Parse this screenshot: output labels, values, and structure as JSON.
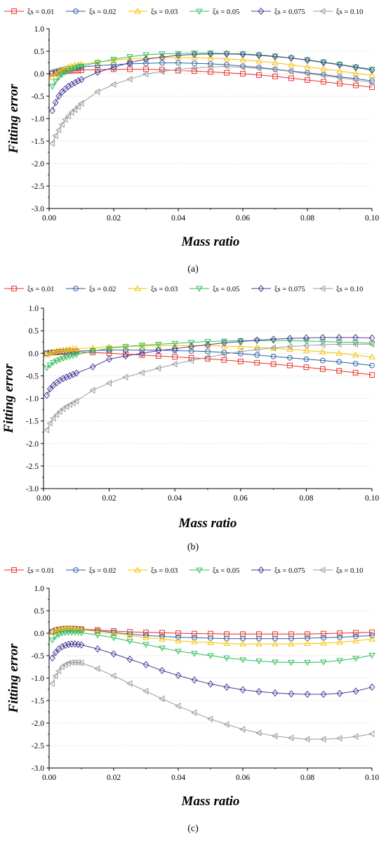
{
  "chart_data": [
    {
      "type": "line",
      "caption": "(a)",
      "xlabel": "Mass ratio",
      "ylabel": "Fitting error",
      "xlim": [
        0.0,
        0.1
      ],
      "ylim": [
        -3.0,
        1.0
      ],
      "xticks": [
        "0.00",
        "0.02",
        "0.04",
        "0.06",
        "0.08",
        "0.10"
      ],
      "yticks": [
        "1.0",
        "0.5",
        "0.0",
        "-0.5",
        "-1.0",
        "-1.5",
        "-2.0",
        "-2.5",
        "-3.0"
      ],
      "grid": "horizontal dotted",
      "legend_position": "top",
      "x": [
        0.001,
        0.002,
        0.003,
        0.004,
        0.005,
        0.006,
        0.007,
        0.008,
        0.009,
        0.01,
        0.015,
        0.02,
        0.025,
        0.03,
        0.035,
        0.04,
        0.045,
        0.05,
        0.055,
        0.06,
        0.065,
        0.07,
        0.075,
        0.08,
        0.085,
        0.09,
        0.095,
        0.1
      ],
      "series": [
        {
          "name": "ξs = 0.01",
          "values": [
            0.0,
            0.02,
            0.04,
            0.05,
            0.06,
            0.06,
            0.07,
            0.07,
            0.07,
            0.08,
            0.09,
            0.1,
            0.1,
            0.1,
            0.09,
            0.07,
            0.06,
            0.04,
            0.02,
            0.0,
            -0.03,
            -0.06,
            -0.1,
            -0.14,
            -0.18,
            -0.22,
            -0.26,
            -0.3
          ]
        },
        {
          "name": "ξs = 0.02",
          "values": [
            0.03,
            0.05,
            0.07,
            0.09,
            0.1,
            0.11,
            0.12,
            0.13,
            0.14,
            0.15,
            0.18,
            0.2,
            0.22,
            0.23,
            0.24,
            0.24,
            0.23,
            0.22,
            0.2,
            0.17,
            0.14,
            0.1,
            0.06,
            0.02,
            -0.02,
            -0.07,
            -0.11,
            -0.16
          ]
        },
        {
          "name": "ξs = 0.03",
          "values": [
            -0.08,
            0.0,
            0.05,
            0.09,
            0.12,
            0.15,
            0.17,
            0.19,
            0.2,
            0.21,
            0.26,
            0.3,
            0.33,
            0.35,
            0.36,
            0.36,
            0.36,
            0.35,
            0.33,
            0.31,
            0.28,
            0.24,
            0.2,
            0.15,
            0.11,
            0.06,
            0.01,
            -0.04
          ]
        },
        {
          "name": "ξs = 0.05",
          "values": [
            -0.28,
            -0.17,
            -0.08,
            -0.02,
            0.03,
            0.07,
            0.1,
            0.13,
            0.15,
            0.17,
            0.25,
            0.32,
            0.38,
            0.42,
            0.44,
            0.45,
            0.46,
            0.46,
            0.45,
            0.44,
            0.42,
            0.39,
            0.35,
            0.31,
            0.26,
            0.21,
            0.15,
            0.1
          ]
        },
        {
          "name": "ξs = 0.075",
          "values": [
            -0.82,
            -0.64,
            -0.5,
            -0.41,
            -0.34,
            -0.28,
            -0.24,
            -0.2,
            -0.16,
            -0.13,
            0.03,
            0.14,
            0.25,
            0.32,
            0.37,
            0.41,
            0.43,
            0.44,
            0.44,
            0.43,
            0.41,
            0.38,
            0.35,
            0.3,
            0.25,
            0.2,
            0.14,
            0.08
          ]
        },
        {
          "name": "ξs = 0.10",
          "values": [
            -1.55,
            -1.38,
            -1.25,
            -1.13,
            -1.02,
            -0.94,
            -0.86,
            -0.8,
            -0.73,
            -0.66,
            -0.4,
            -0.24,
            -0.12,
            -0.01,
            0.05,
            0.1,
            0.13,
            0.15,
            0.16,
            0.14,
            0.12,
            0.09,
            0.05,
            0.0,
            -0.04,
            -0.09,
            -0.14,
            -0.2
          ]
        }
      ]
    },
    {
      "type": "line",
      "caption": "(b)",
      "xlabel": "Mass ratio",
      "ylabel": "Fitting error",
      "xlim": [
        0.0,
        0.1
      ],
      "ylim": [
        -3.0,
        1.0
      ],
      "xticks": [
        "0.00",
        "0.02",
        "0.04",
        "0.06",
        "0.08",
        "0.10"
      ],
      "yticks": [
        "1.0",
        "0.5",
        "0.0",
        "-0.5",
        "-1.0",
        "-1.5",
        "-2.0",
        "-2.5",
        "-3.0"
      ],
      "grid": "horizontal dotted",
      "legend_position": "top",
      "x": [
        0.001,
        0.002,
        0.003,
        0.004,
        0.005,
        0.006,
        0.007,
        0.008,
        0.009,
        0.01,
        0.015,
        0.02,
        0.025,
        0.03,
        0.035,
        0.04,
        0.045,
        0.05,
        0.055,
        0.06,
        0.065,
        0.07,
        0.075,
        0.08,
        0.085,
        0.09,
        0.095,
        0.1
      ],
      "series": [
        {
          "name": "ξs = 0.01",
          "values": [
            0.0,
            0.01,
            0.02,
            0.02,
            0.03,
            0.03,
            0.03,
            0.03,
            0.03,
            0.03,
            0.02,
            0.0,
            -0.02,
            -0.04,
            -0.06,
            -0.08,
            -0.1,
            -0.12,
            -0.15,
            -0.18,
            -0.21,
            -0.24,
            -0.27,
            -0.31,
            -0.35,
            -0.39,
            -0.43,
            -0.48
          ]
        },
        {
          "name": "ξs = 0.02",
          "values": [
            0.0,
            0.01,
            0.02,
            0.03,
            0.04,
            0.04,
            0.05,
            0.05,
            0.05,
            0.05,
            0.06,
            0.07,
            0.07,
            0.07,
            0.07,
            0.06,
            0.05,
            0.04,
            0.02,
            -0.01,
            -0.04,
            -0.07,
            -0.1,
            -0.13,
            -0.16,
            -0.19,
            -0.23,
            -0.27
          ]
        },
        {
          "name": "ξs = 0.03",
          "values": [
            -0.03,
            0.0,
            0.03,
            0.05,
            0.06,
            0.07,
            0.08,
            0.09,
            0.1,
            0.1,
            0.12,
            0.14,
            0.15,
            0.16,
            0.17,
            0.17,
            0.17,
            0.17,
            0.16,
            0.15,
            0.13,
            0.11,
            0.09,
            0.06,
            0.03,
            0.0,
            -0.04,
            -0.08
          ]
        },
        {
          "name": "ξs = 0.05",
          "values": [
            -0.32,
            -0.26,
            -0.2,
            -0.17,
            -0.14,
            -0.11,
            -0.09,
            -0.07,
            -0.05,
            -0.03,
            0.05,
            0.11,
            0.15,
            0.18,
            0.2,
            0.22,
            0.24,
            0.26,
            0.27,
            0.28,
            0.28,
            0.28,
            0.28,
            0.27,
            0.26,
            0.25,
            0.24,
            0.22
          ]
        },
        {
          "name": "ξs = 0.075",
          "values": [
            -0.93,
            -0.79,
            -0.71,
            -0.65,
            -0.6,
            -0.56,
            -0.53,
            -0.5,
            -0.47,
            -0.44,
            -0.3,
            -0.13,
            -0.06,
            0.0,
            0.06,
            0.1,
            0.15,
            0.19,
            0.23,
            0.26,
            0.29,
            0.31,
            0.33,
            0.34,
            0.35,
            0.35,
            0.35,
            0.34
          ]
        },
        {
          "name": "ξs = 0.10",
          "values": [
            -1.7,
            -1.55,
            -1.44,
            -1.36,
            -1.29,
            -1.23,
            -1.18,
            -1.14,
            -1.1,
            -1.06,
            -0.82,
            -0.66,
            -0.53,
            -0.43,
            -0.33,
            -0.24,
            -0.16,
            -0.09,
            -0.02,
            0.04,
            0.08,
            0.12,
            0.15,
            0.17,
            0.19,
            0.2,
            0.2,
            0.2
          ]
        }
      ]
    },
    {
      "type": "line",
      "caption": "(c)",
      "xlabel": "Mass ratio",
      "ylabel": "Fitting error",
      "xlim": [
        0.0,
        0.1
      ],
      "ylim": [
        -3.0,
        1.0
      ],
      "xticks": [
        "0.00",
        "0.02",
        "0.04",
        "0.06",
        "0.08",
        "0.10"
      ],
      "yticks": [
        "1.0",
        "0.5",
        "0.0",
        "-0.5",
        "-1.0",
        "-1.5",
        "-2.0",
        "-2.5",
        "-3.0"
      ],
      "grid": "horizontal dotted",
      "legend_position": "top",
      "x": [
        0.001,
        0.002,
        0.003,
        0.004,
        0.005,
        0.006,
        0.007,
        0.008,
        0.009,
        0.01,
        0.015,
        0.02,
        0.025,
        0.03,
        0.035,
        0.04,
        0.045,
        0.05,
        0.055,
        0.06,
        0.065,
        0.07,
        0.075,
        0.08,
        0.085,
        0.09,
        0.095,
        0.1
      ],
      "series": [
        {
          "name": "ξs = 0.01",
          "values": [
            0.03,
            0.06,
            0.08,
            0.09,
            0.1,
            0.1,
            0.1,
            0.1,
            0.09,
            0.09,
            0.07,
            0.05,
            0.03,
            0.02,
            0.01,
            0.0,
            -0.01,
            -0.01,
            -0.02,
            -0.02,
            -0.02,
            -0.02,
            -0.02,
            -0.02,
            -0.01,
            0.0,
            0.01,
            0.02
          ]
        },
        {
          "name": "ξs = 0.02",
          "values": [
            0.04,
            0.07,
            0.09,
            0.1,
            0.1,
            0.1,
            0.1,
            0.1,
            0.09,
            0.08,
            0.05,
            0.02,
            -0.02,
            -0.05,
            -0.07,
            -0.09,
            -0.1,
            -0.11,
            -0.12,
            -0.12,
            -0.12,
            -0.12,
            -0.12,
            -0.11,
            -0.1,
            -0.09,
            -0.07,
            -0.05
          ]
        },
        {
          "name": "ξs = 0.03",
          "values": [
            0.03,
            0.07,
            0.09,
            0.1,
            0.11,
            0.11,
            0.11,
            0.1,
            0.09,
            0.08,
            0.04,
            0.0,
            -0.05,
            -0.1,
            -0.13,
            -0.17,
            -0.19,
            -0.21,
            -0.23,
            -0.24,
            -0.24,
            -0.24,
            -0.24,
            -0.23,
            -0.22,
            -0.2,
            -0.17,
            -0.13
          ]
        },
        {
          "name": "ξs = 0.05",
          "values": [
            -0.15,
            -0.07,
            -0.03,
            0.0,
            0.01,
            0.02,
            0.02,
            0.02,
            0.02,
            0.01,
            -0.04,
            -0.1,
            -0.18,
            -0.25,
            -0.33,
            -0.4,
            -0.45,
            -0.5,
            -0.55,
            -0.59,
            -0.62,
            -0.64,
            -0.65,
            -0.65,
            -0.64,
            -0.61,
            -0.56,
            -0.49
          ]
        },
        {
          "name": "ξs = 0.075",
          "values": [
            -0.55,
            -0.43,
            -0.35,
            -0.3,
            -0.27,
            -0.25,
            -0.24,
            -0.24,
            -0.25,
            -0.26,
            -0.35,
            -0.46,
            -0.58,
            -0.7,
            -0.83,
            -0.94,
            -1.04,
            -1.13,
            -1.2,
            -1.26,
            -1.3,
            -1.33,
            -1.35,
            -1.36,
            -1.36,
            -1.34,
            -1.29,
            -1.2
          ]
        },
        {
          "name": "ξs = 0.10",
          "values": [
            -1.12,
            -0.95,
            -0.84,
            -0.75,
            -0.7,
            -0.67,
            -0.65,
            -0.65,
            -0.65,
            -0.66,
            -0.79,
            -0.95,
            -1.12,
            -1.29,
            -1.46,
            -1.62,
            -1.77,
            -1.91,
            -2.03,
            -2.14,
            -2.22,
            -2.29,
            -2.33,
            -2.36,
            -2.36,
            -2.34,
            -2.3,
            -2.24
          ]
        }
      ]
    }
  ],
  "series_styles": [
    {
      "color": "#e8312a",
      "marker": "square"
    },
    {
      "color": "#2a5ea8",
      "marker": "circle"
    },
    {
      "color": "#f5c000",
      "marker": "triangle-up"
    },
    {
      "color": "#2ebd5a",
      "marker": "triangle-down"
    },
    {
      "color": "#4b3d95",
      "marker": "diamond"
    },
    {
      "color": "#9a9a9a",
      "marker": "triangle-left"
    }
  ]
}
